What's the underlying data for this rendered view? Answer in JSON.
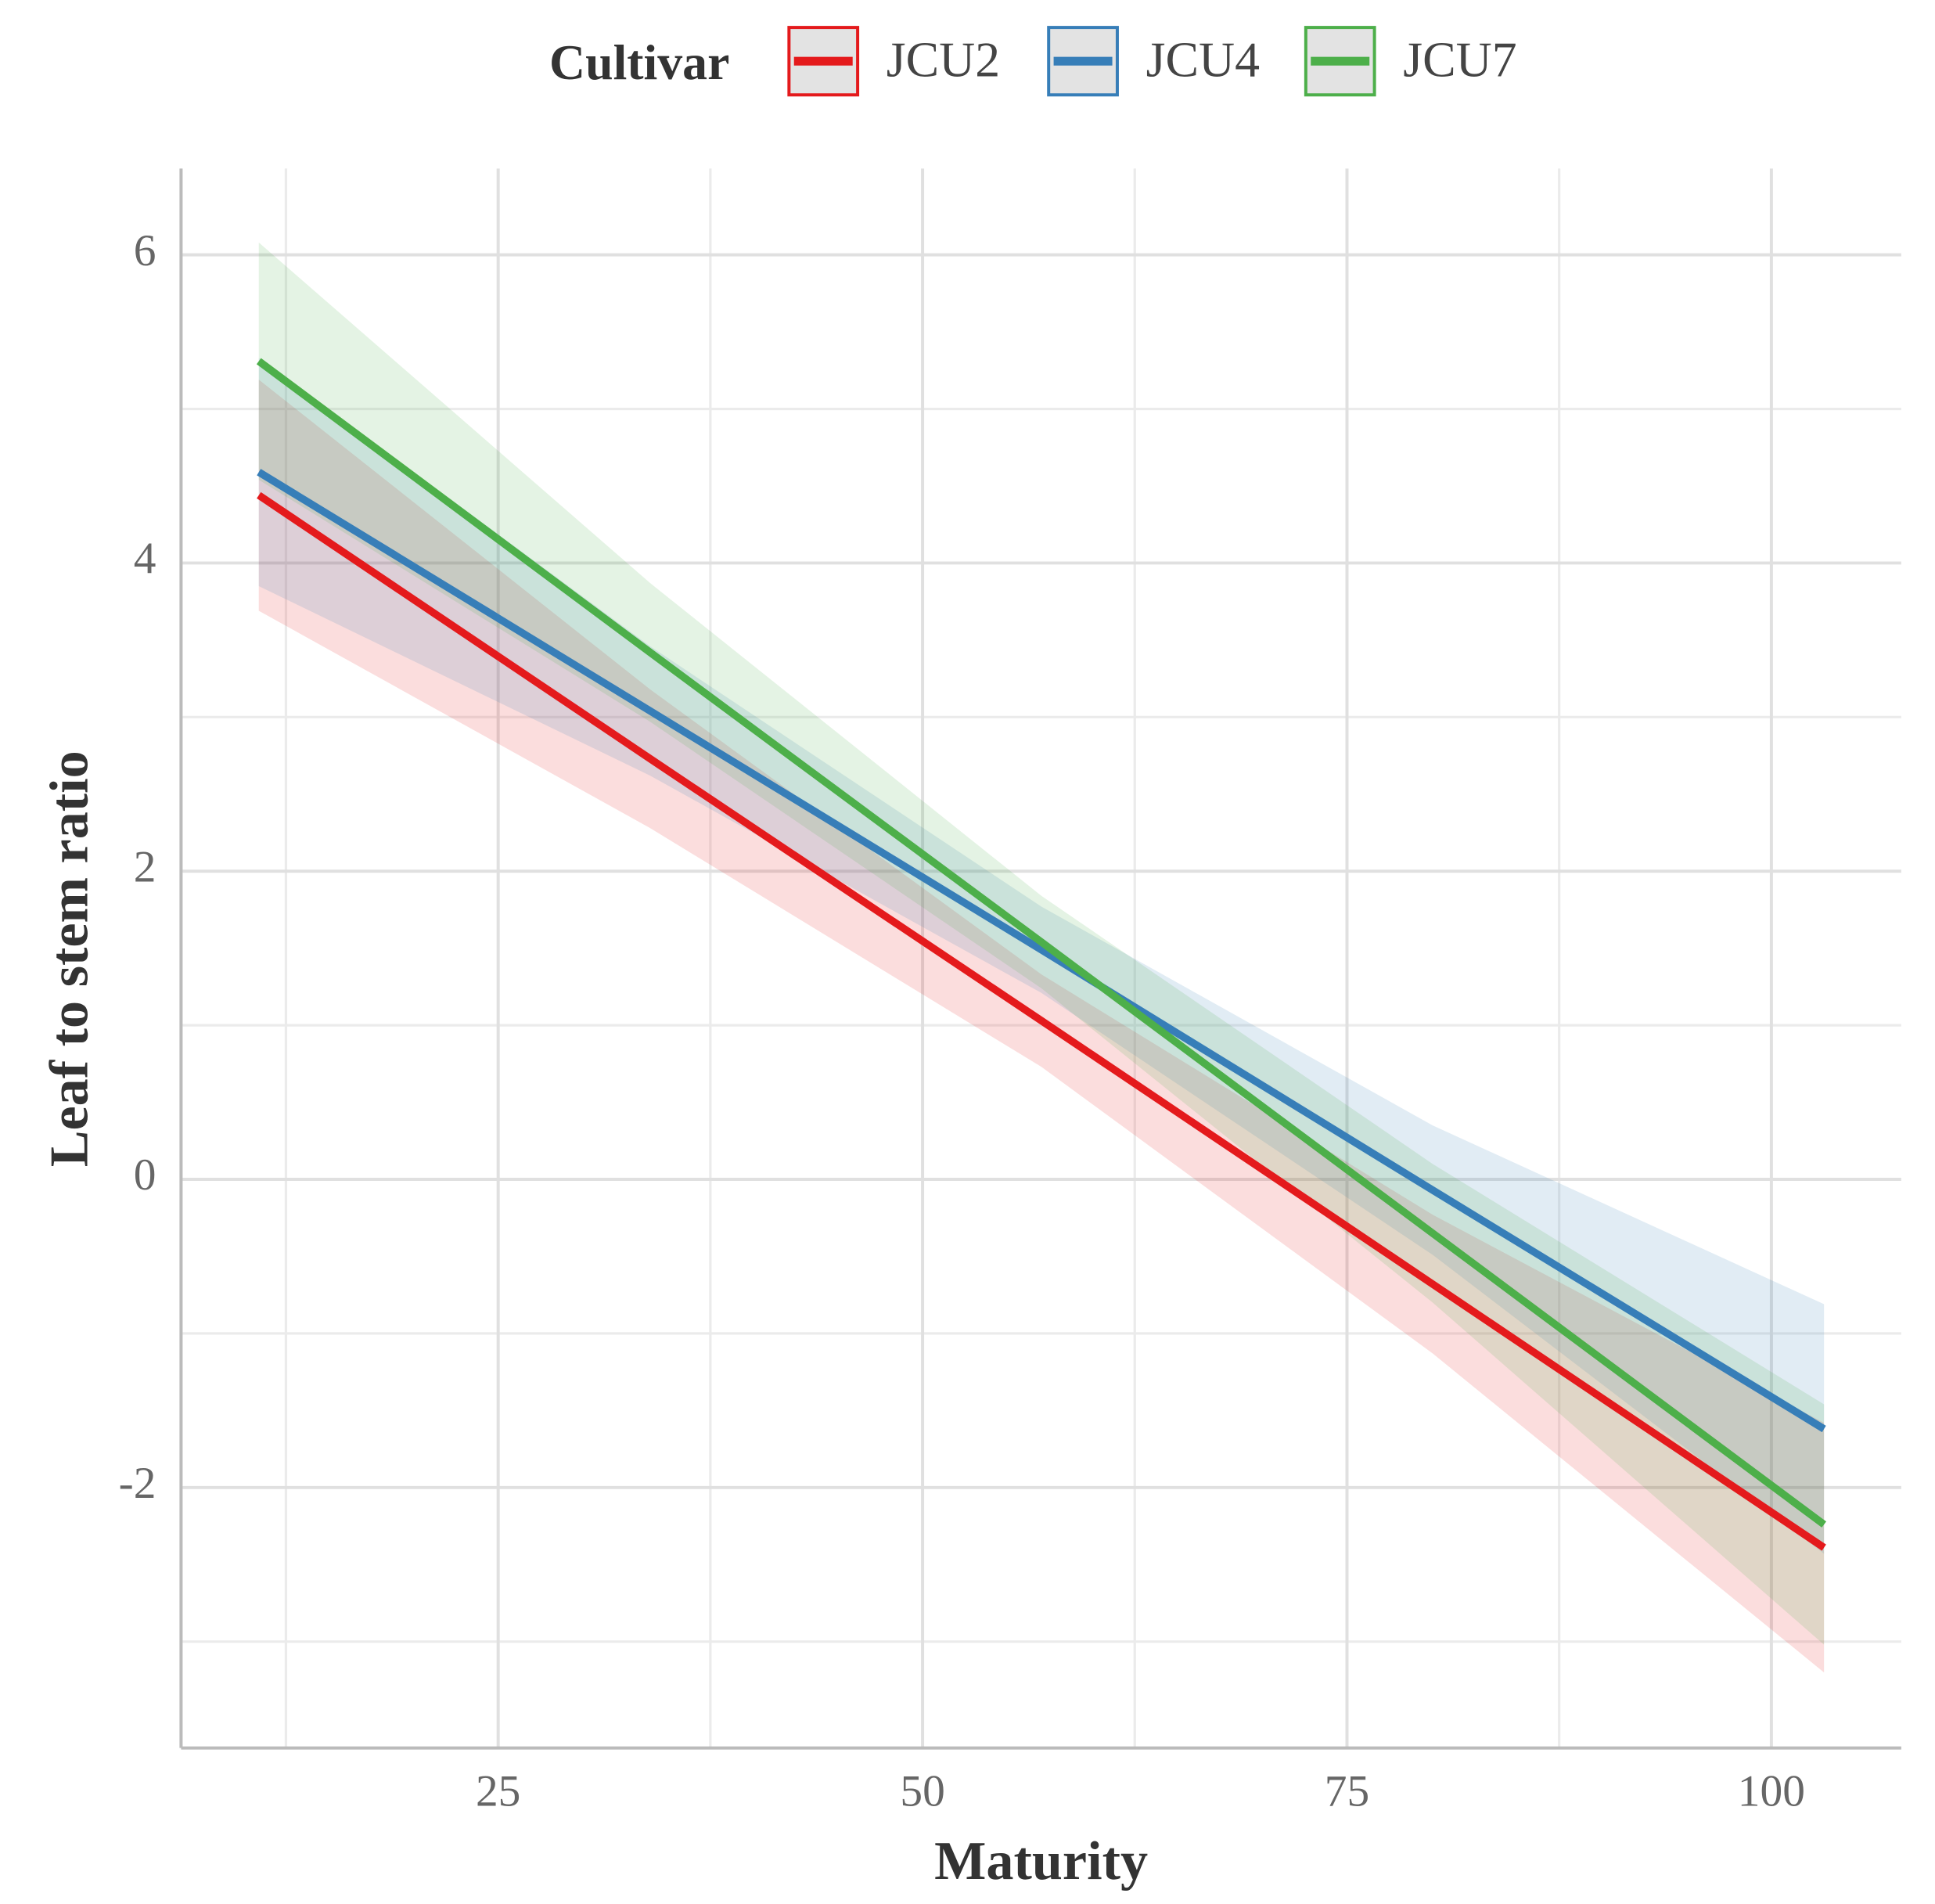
{
  "chart_data": {
    "type": "line",
    "x_label": "Maturity",
    "y_label": "Leaf to stem ratio",
    "legend_title": "Cultivar",
    "xlim": [
      6.32,
      107.65
    ],
    "ylim": [
      -3.69,
      6.56
    ],
    "xticks": [
      25,
      50,
      75,
      100
    ],
    "yticks": [
      -2,
      0,
      2,
      4,
      6
    ],
    "xminor": [
      12.5,
      37.5,
      62.5,
      87.5
    ],
    "yminor": [
      -3,
      -1,
      1,
      3,
      5
    ],
    "grid": true,
    "legend": "top",
    "x": [
      10.9,
      33.95,
      57,
      80.05,
      103.1
    ],
    "series": [
      {
        "name": "JCU2",
        "color": "#e41a1c",
        "values": [
          4.44,
          2.73,
          1.03,
          -0.68,
          -2.39
        ],
        "lower": [
          3.69,
          2.28,
          0.73,
          -1.13,
          -3.2
        ],
        "upper": [
          5.19,
          3.18,
          1.33,
          -0.23,
          -1.58
        ]
      },
      {
        "name": "JCU4",
        "color": "#377eb8",
        "values": [
          4.59,
          3.04,
          1.49,
          -0.07,
          -1.62
        ],
        "lower": [
          3.85,
          2.62,
          1.21,
          -0.49,
          -2.43
        ],
        "upper": [
          5.33,
          3.46,
          1.77,
          0.35,
          -0.81
        ]
      },
      {
        "name": "JCU7",
        "color": "#4daf4a",
        "values": [
          5.31,
          3.42,
          1.54,
          -0.35,
          -2.24
        ],
        "lower": [
          4.54,
          2.97,
          1.24,
          -0.8,
          -3.02
        ],
        "upper": [
          6.08,
          3.87,
          1.84,
          0.1,
          -1.46
        ]
      }
    ]
  }
}
